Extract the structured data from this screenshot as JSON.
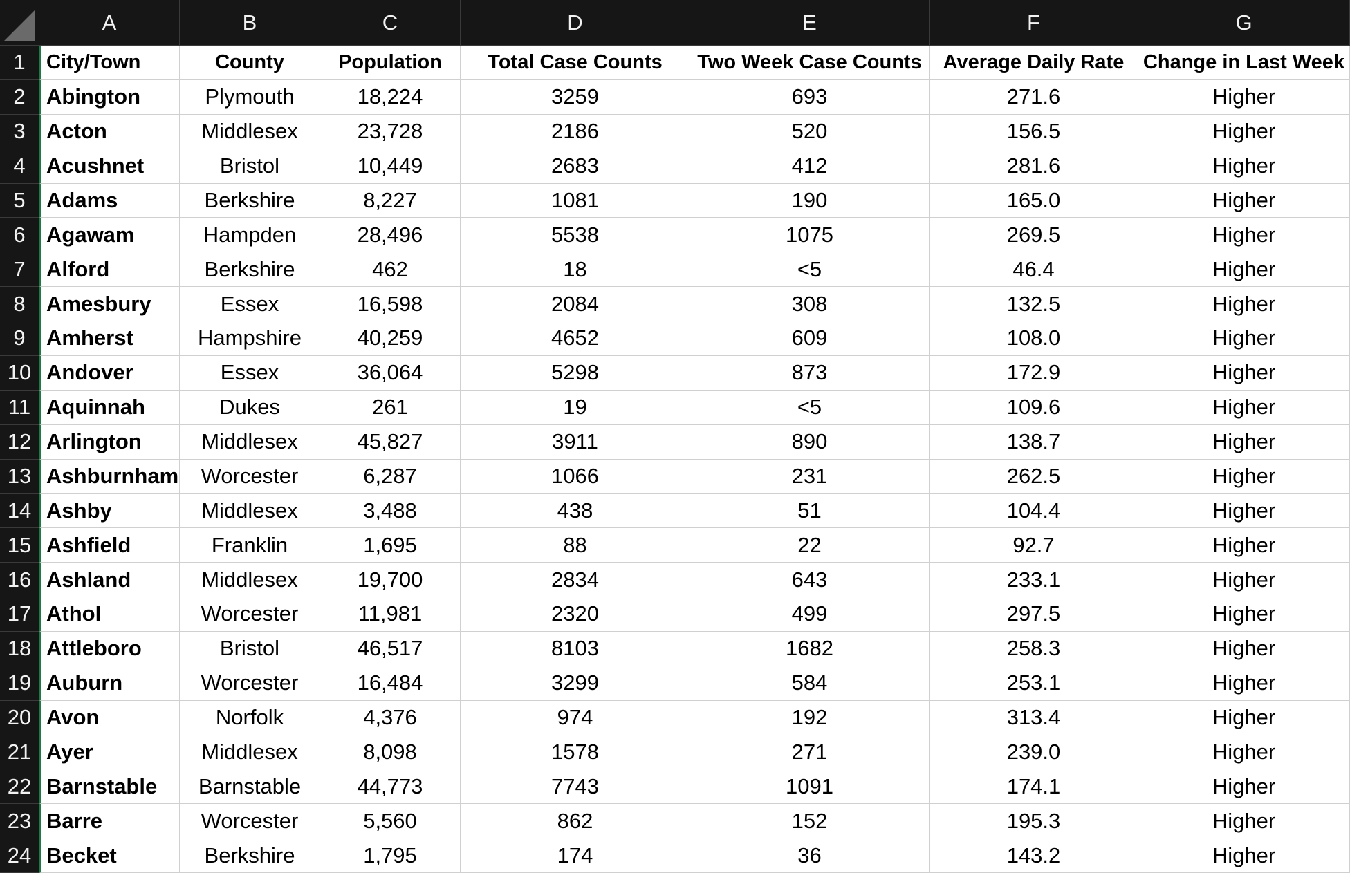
{
  "sheet": {
    "column_letters": [
      "A",
      "B",
      "C",
      "D",
      "E",
      "F",
      "G"
    ],
    "row_numbers": [
      "1",
      "2",
      "3",
      "4",
      "5",
      "6",
      "7",
      "8",
      "9",
      "10",
      "11",
      "12",
      "13",
      "14",
      "15",
      "16",
      "17",
      "18",
      "19",
      "20",
      "21",
      "22",
      "23",
      "24"
    ],
    "headers": [
      "City/Town",
      "County",
      "Population",
      "Total Case Counts",
      "Two Week Case Counts",
      "Average Daily Rate",
      "Change in Last Week"
    ],
    "rows": [
      [
        "Abington",
        "Plymouth",
        "18,224",
        "3259",
        "693",
        "271.6",
        "Higher"
      ],
      [
        "Acton",
        "Middlesex",
        "23,728",
        "2186",
        "520",
        "156.5",
        "Higher"
      ],
      [
        "Acushnet",
        "Bristol",
        "10,449",
        "2683",
        "412",
        "281.6",
        "Higher"
      ],
      [
        "Adams",
        "Berkshire",
        "8,227",
        "1081",
        "190",
        "165.0",
        "Higher"
      ],
      [
        "Agawam",
        "Hampden",
        "28,496",
        "5538",
        "1075",
        "269.5",
        "Higher"
      ],
      [
        "Alford",
        "Berkshire",
        "462",
        "18",
        "<5",
        "46.4",
        "Higher"
      ],
      [
        "Amesbury",
        "Essex",
        "16,598",
        "2084",
        "308",
        "132.5",
        "Higher"
      ],
      [
        "Amherst",
        "Hampshire",
        "40,259",
        "4652",
        "609",
        "108.0",
        "Higher"
      ],
      [
        "Andover",
        "Essex",
        "36,064",
        "5298",
        "873",
        "172.9",
        "Higher"
      ],
      [
        "Aquinnah",
        "Dukes",
        "261",
        "19",
        "<5",
        "109.6",
        "Higher"
      ],
      [
        "Arlington",
        "Middlesex",
        "45,827",
        "3911",
        "890",
        "138.7",
        "Higher"
      ],
      [
        "Ashburnham",
        "Worcester",
        "6,287",
        "1066",
        "231",
        "262.5",
        "Higher"
      ],
      [
        "Ashby",
        "Middlesex",
        "3,488",
        "438",
        "51",
        "104.4",
        "Higher"
      ],
      [
        "Ashfield",
        "Franklin",
        "1,695",
        "88",
        "22",
        "92.7",
        "Higher"
      ],
      [
        "Ashland",
        "Middlesex",
        "19,700",
        "2834",
        "643",
        "233.1",
        "Higher"
      ],
      [
        "Athol",
        "Worcester",
        "11,981",
        "2320",
        "499",
        "297.5",
        "Higher"
      ],
      [
        "Attleboro",
        "Bristol",
        "46,517",
        "8103",
        "1682",
        "258.3",
        "Higher"
      ],
      [
        "Auburn",
        "Worcester",
        "16,484",
        "3299",
        "584",
        "253.1",
        "Higher"
      ],
      [
        "Avon",
        "Norfolk",
        "4,376",
        "974",
        "192",
        "313.4",
        "Higher"
      ],
      [
        "Ayer",
        "Middlesex",
        "8,098",
        "1578",
        "271",
        "239.0",
        "Higher"
      ],
      [
        "Barnstable",
        "Barnstable",
        "44,773",
        "7743",
        "1091",
        "174.1",
        "Higher"
      ],
      [
        "Barre",
        "Worcester",
        "5,560",
        "862",
        "152",
        "195.3",
        "Higher"
      ],
      [
        "Becket",
        "Berkshire",
        "1,795",
        "174",
        "36",
        "143.2",
        "Higher"
      ]
    ]
  }
}
